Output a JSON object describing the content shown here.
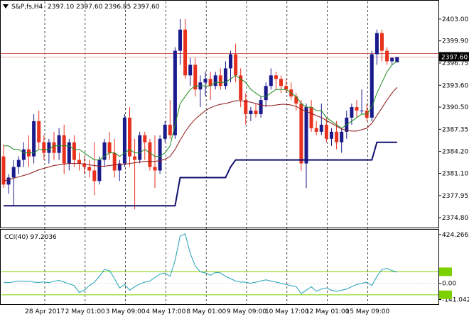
{
  "window": {
    "title": "S&P,fs,H4",
    "ohlc_readout": "2397.10 2397.60 2396.85 2397.60",
    "menu_icon": "down-triangle-icon"
  },
  "colors": {
    "bull": "#1a1a8c",
    "bear": "#e8321e",
    "ma_fast": "#1e8c1e",
    "ma_slow": "#8c1414",
    "stop_line": "#10106e",
    "bid_line": "#d46060",
    "cci_line": "#20a0b4",
    "cci_levels": "#7cd000",
    "grid": "#000000"
  },
  "chart_data": [
    {
      "type": "candlestick",
      "title": "S&P,fs,H4",
      "ylim": [
        2373.5,
        2405.5
      ],
      "y_ticks": [
        "2403.00",
        "2399.90",
        "2396.75",
        "2393.60",
        "2390.50",
        "2387.35",
        "2384.20",
        "2381.10",
        "2377.95",
        "2374.80"
      ],
      "y_tick_values": [
        2403.0,
        2399.9,
        2396.75,
        2393.6,
        2390.5,
        2387.35,
        2384.2,
        2381.1,
        2377.95,
        2374.8
      ],
      "current_price_label": "2397.60",
      "current_price": 2397.6,
      "grid": "dashed-vertical",
      "candles": [
        [
          2383.5,
          2385.2,
          2379.0,
          2379.5
        ],
        [
          2379.5,
          2381.0,
          2378.2,
          2380.5
        ],
        [
          2380.5,
          2383.0,
          2376.5,
          2382.0
        ],
        [
          2382.0,
          2383.5,
          2381.0,
          2383.0
        ],
        [
          2383.0,
          2385.5,
          2382.0,
          2384.5
        ],
        [
          2384.5,
          2386.5,
          2382.0,
          2383.5
        ],
        [
          2383.5,
          2389.5,
          2382.5,
          2388.5
        ],
        [
          2388.5,
          2390.0,
          2384.5,
          2385.5
        ],
        [
          2385.5,
          2386.5,
          2383.0,
          2384.0
        ],
        [
          2384.0,
          2386.0,
          2382.5,
          2385.5
        ],
        [
          2385.5,
          2387.0,
          2383.0,
          2384.0
        ],
        [
          2384.0,
          2387.5,
          2383.0,
          2386.5
        ],
        [
          2386.5,
          2388.0,
          2381.0,
          2382.5
        ],
        [
          2382.5,
          2386.0,
          2381.5,
          2385.5
        ],
        [
          2385.5,
          2386.5,
          2382.0,
          2383.0
        ],
        [
          2383.0,
          2384.0,
          2381.5,
          2382.5
        ],
        [
          2382.5,
          2383.5,
          2381.0,
          2382.0
        ],
        [
          2382.0,
          2383.0,
          2380.5,
          2381.5
        ],
        [
          2381.5,
          2385.5,
          2378.0,
          2380.0
        ],
        [
          2380.0,
          2383.5,
          2379.5,
          2383.0
        ],
        [
          2383.0,
          2386.0,
          2382.0,
          2385.5
        ],
        [
          2385.5,
          2387.0,
          2383.0,
          2384.0
        ],
        [
          2384.0,
          2386.0,
          2380.5,
          2381.5
        ],
        [
          2381.5,
          2383.0,
          2380.0,
          2382.5
        ],
        [
          2382.5,
          2389.5,
          2382.0,
          2389.0
        ],
        [
          2389.0,
          2390.5,
          2382.0,
          2383.5
        ],
        [
          2383.5,
          2386.0,
          2376.0,
          2383.0
        ],
        [
          2383.0,
          2387.0,
          2382.5,
          2386.5
        ],
        [
          2386.5,
          2387.0,
          2383.0,
          2385.5
        ],
        [
          2385.5,
          2386.0,
          2381.5,
          2382.0
        ],
        [
          2382.0,
          2386.5,
          2379.0,
          2381.5
        ],
        [
          2381.5,
          2386.5,
          2381.0,
          2386.0
        ],
        [
          2386.0,
          2388.5,
          2385.5,
          2388.0
        ],
        [
          2388.0,
          2391.5,
          2386.0,
          2386.5
        ],
        [
          2386.5,
          2399.0,
          2386.0,
          2398.5
        ],
        [
          2398.5,
          2403.0,
          2396.5,
          2401.5
        ],
        [
          2401.5,
          2403.0,
          2394.5,
          2395.0
        ],
        [
          2395.0,
          2397.5,
          2393.5,
          2396.5
        ],
        [
          2396.5,
          2397.5,
          2392.0,
          2393.0
        ],
        [
          2393.0,
          2395.0,
          2390.5,
          2394.0
        ],
        [
          2394.0,
          2395.5,
          2392.0,
          2394.5
        ],
        [
          2394.5,
          2395.5,
          2391.5,
          2393.5
        ],
        [
          2393.5,
          2395.5,
          2393.0,
          2395.0
        ],
        [
          2395.0,
          2396.0,
          2393.0,
          2393.5
        ],
        [
          2393.5,
          2397.0,
          2393.0,
          2396.0
        ],
        [
          2396.0,
          2398.5,
          2394.0,
          2398.0
        ],
        [
          2398.0,
          2399.5,
          2394.0,
          2395.0
        ],
        [
          2395.0,
          2396.0,
          2390.5,
          2391.5
        ],
        [
          2391.5,
          2392.5,
          2388.0,
          2389.5
        ],
        [
          2389.5,
          2390.5,
          2388.5,
          2390.0
        ],
        [
          2390.0,
          2391.0,
          2389.0,
          2389.5
        ],
        [
          2389.5,
          2392.0,
          2389.0,
          2391.5
        ],
        [
          2391.5,
          2394.0,
          2390.5,
          2393.5
        ],
        [
          2393.5,
          2396.0,
          2393.0,
          2395.0
        ],
        [
          2395.0,
          2395.5,
          2393.0,
          2394.5
        ],
        [
          2394.5,
          2395.0,
          2392.5,
          2393.5
        ],
        [
          2393.5,
          2394.5,
          2392.5,
          2393.0
        ],
        [
          2393.0,
          2394.0,
          2391.5,
          2392.0
        ],
        [
          2392.0,
          2392.5,
          2390.0,
          2391.0
        ],
        [
          2391.0,
          2391.5,
          2381.5,
          2382.5
        ],
        [
          2382.5,
          2391.0,
          2379.0,
          2390.5
        ],
        [
          2390.5,
          2391.5,
          2387.0,
          2387.5
        ],
        [
          2387.5,
          2388.5,
          2386.5,
          2387.0
        ],
        [
          2387.0,
          2391.0,
          2386.5,
          2388.0
        ],
        [
          2388.0,
          2389.0,
          2385.5,
          2386.0
        ],
        [
          2386.0,
          2387.5,
          2385.0,
          2387.0
        ],
        [
          2387.0,
          2388.5,
          2384.5,
          2385.5
        ],
        [
          2385.5,
          2387.5,
          2384.0,
          2387.0
        ],
        [
          2387.0,
          2390.0,
          2386.0,
          2389.0
        ],
        [
          2389.0,
          2391.0,
          2388.0,
          2390.5
        ],
        [
          2390.5,
          2391.5,
          2389.0,
          2390.0
        ],
        [
          2390.0,
          2393.0,
          2389.5,
          2390.0
        ],
        [
          2390.0,
          2391.0,
          2388.5,
          2389.0
        ],
        [
          2389.0,
          2398.5,
          2388.5,
          2398.0
        ],
        [
          2398.0,
          2401.5,
          2396.5,
          2401.0
        ],
        [
          2401.0,
          2401.5,
          2397.0,
          2398.5
        ],
        [
          2398.5,
          2399.0,
          2396.5,
          2397.0
        ],
        [
          2397.0,
          2397.5,
          2396.5,
          2397.5
        ],
        [
          2396.85,
          2397.6,
          2396.85,
          2397.6
        ]
      ],
      "ma_fast": [
        2385,
        2385,
        2384.5,
        2384.5,
        2384,
        2384,
        2384,
        2384.5,
        2384.5,
        2384.5,
        2385,
        2385,
        2385,
        2385,
        2384.5,
        2384.5,
        2384,
        2383.5,
        2383,
        2383,
        2383.5,
        2384,
        2384,
        2383.5,
        2384,
        2384.5,
        2384,
        2384,
        2384.5,
        2384,
        2383.5,
        2383.5,
        2384,
        2385,
        2388,
        2391,
        2392,
        2393,
        2393.5,
        2393.5,
        2393.5,
        2393.5,
        2394,
        2394,
        2394,
        2394.5,
        2395,
        2394.5,
        2394,
        2393,
        2392.5,
        2392,
        2392,
        2392.5,
        2393,
        2393,
        2393,
        2392.5,
        2392,
        2391,
        2390.5,
        2390.5,
        2390,
        2390,
        2389,
        2388.5,
        2388,
        2387.5,
        2388,
        2388.5,
        2389,
        2389.5,
        2389.5,
        2390.5,
        2392.5,
        2394,
        2395.5,
        2396.5,
        2397
      ],
      "ma_slow": [
        2380,
        2380.2,
        2380.4,
        2380.6,
        2380.8,
        2381,
        2381.3,
        2381.6,
        2381.8,
        2382,
        2382.2,
        2382.3,
        2382.4,
        2382.5,
        2382.5,
        2382.5,
        2382.4,
        2382.3,
        2382.2,
        2382.1,
        2382.1,
        2382.2,
        2382.3,
        2382.3,
        2382.4,
        2382.5,
        2382.6,
        2382.7,
        2382.8,
        2382.8,
        2382.8,
        2382.9,
        2383.1,
        2383.5,
        2384.5,
        2385.8,
        2387,
        2388,
        2388.8,
        2389.4,
        2390,
        2390.4,
        2390.7,
        2390.9,
        2391,
        2391.2,
        2391.4,
        2391.4,
        2391.3,
        2391.2,
        2391,
        2390.8,
        2390.7,
        2390.7,
        2390.8,
        2390.9,
        2390.9,
        2390.8,
        2390.6,
        2390.2,
        2389.9,
        2389.6,
        2389.3,
        2389,
        2388.6,
        2388.2,
        2387.8,
        2387.4,
        2387.2,
        2387.1,
        2387.1,
        2387.3,
        2387.5,
        2388.2,
        2389.3,
        2390.4,
        2391.5,
        2392.5,
        2393.3
      ],
      "stop_line": [
        [
          0,
          2376.5
        ],
        [
          34,
          2376.5
        ],
        [
          35,
          2380.5
        ],
        [
          44,
          2380.5
        ],
        [
          45,
          2382.0
        ],
        [
          46,
          2383.0
        ],
        [
          72,
          2383.0
        ],
        [
          73,
          2383.0
        ],
        [
          74,
          2385.5
        ],
        [
          78,
          2385.5
        ]
      ],
      "x_labels": [
        "28 Apr 2017",
        "2 May 01:00",
        "3 May 09:00",
        "4 May 17:00",
        "8 May 01:00",
        "9 May 09:00",
        "10 May 17:00",
        "12 May 01:00",
        "15 May 09:00"
      ],
      "x_label_index": [
        0,
        8,
        16,
        24,
        32,
        40,
        48,
        56,
        64
      ]
    },
    {
      "type": "line",
      "title": "CCI(40) 97.2036",
      "ylim": [
        -175,
        460
      ],
      "y_ticks": [
        "424.2662",
        "0.00",
        "-141.0421"
      ],
      "y_tick_values": [
        424.2662,
        0,
        -141.0421
      ],
      "levels": [
        100,
        -100
      ],
      "level_labels": [
        "100",
        "-100"
      ],
      "values": [
        10,
        5,
        12,
        20,
        15,
        18,
        10,
        8,
        12,
        5,
        18,
        25,
        10,
        -5,
        -20,
        -80,
        -60,
        -20,
        10,
        60,
        120,
        110,
        40,
        -40,
        -10,
        -60,
        -30,
        -5,
        10,
        20,
        50,
        80,
        90,
        60,
        200,
        410,
        430,
        260,
        150,
        100,
        90,
        70,
        95,
        90,
        60,
        40,
        20,
        10,
        10,
        0,
        10,
        20,
        30,
        20,
        10,
        0,
        -10,
        -20,
        -30,
        -90,
        -60,
        -30,
        -70,
        -50,
        -40,
        -60,
        -70,
        -60,
        -50,
        -30,
        -10,
        0,
        10,
        -20,
        60,
        120,
        130,
        110,
        97
      ]
    }
  ]
}
